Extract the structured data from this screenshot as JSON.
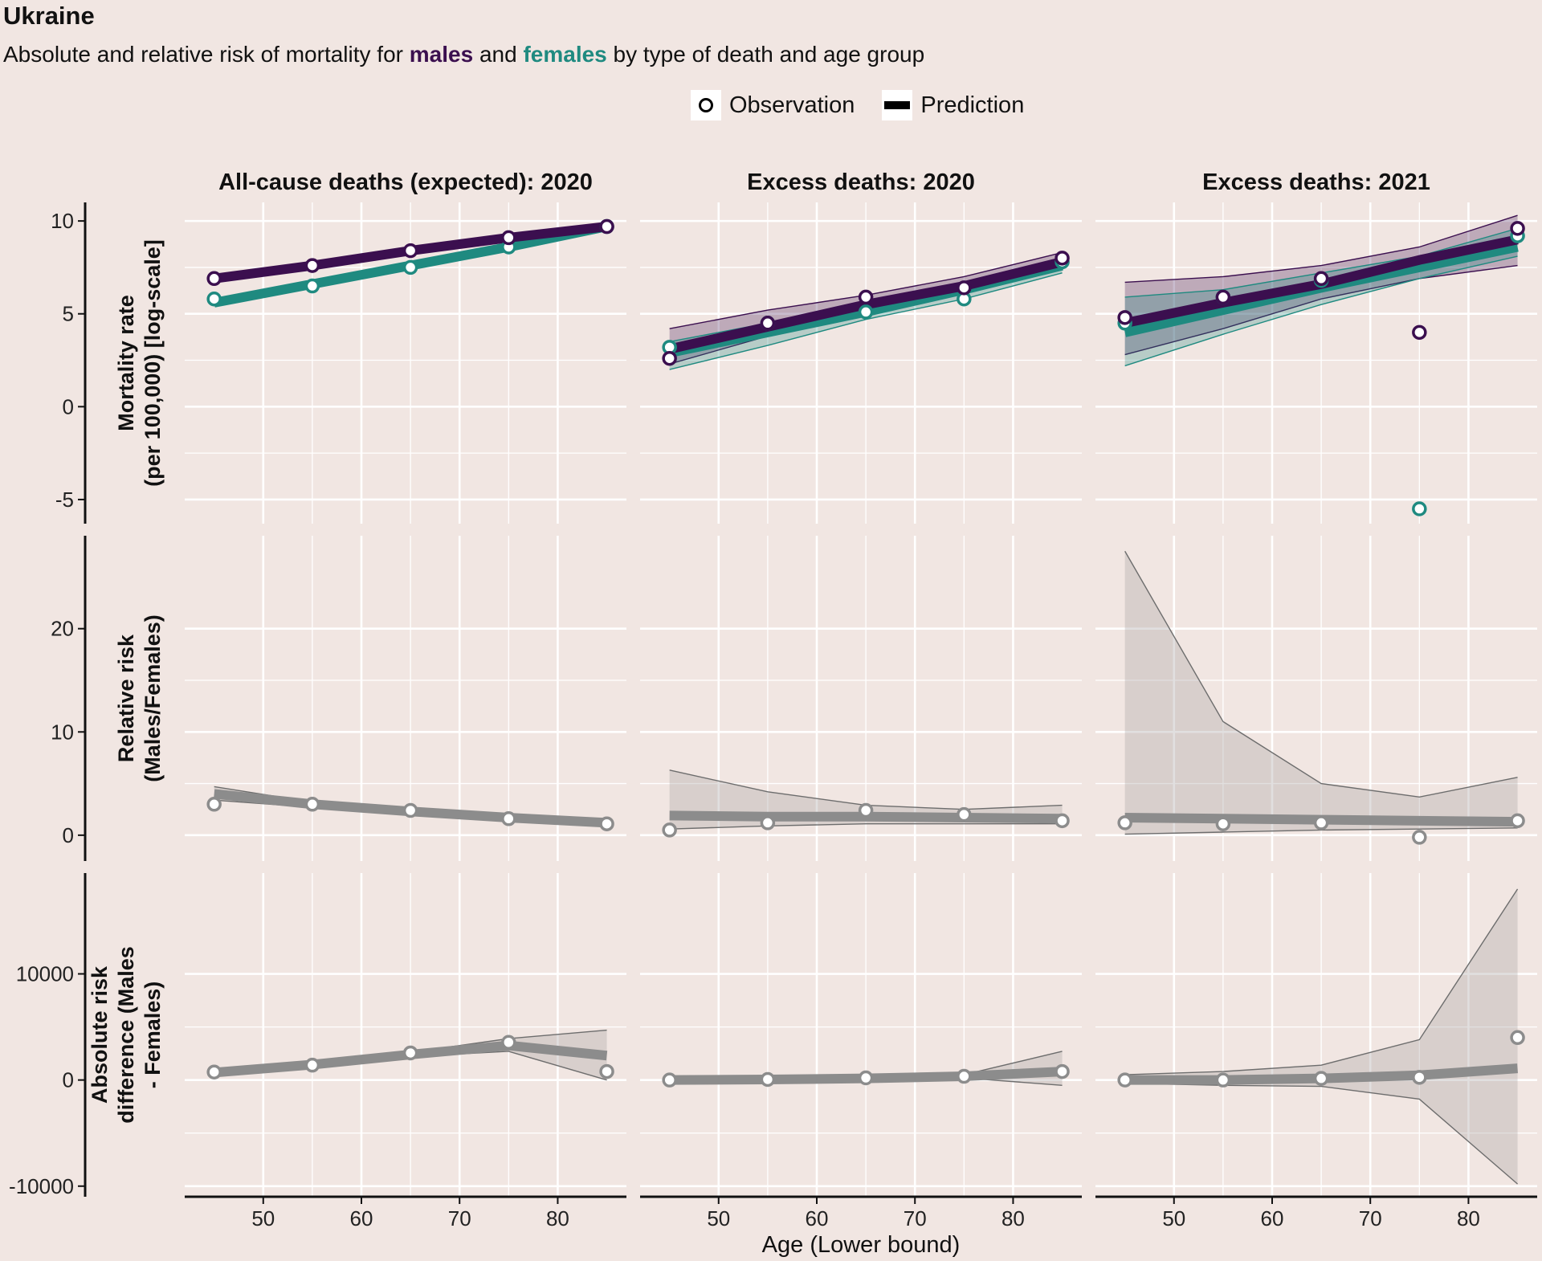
{
  "title": "Ukraine",
  "subtitle": {
    "before": "Absolute and relative risk of mortality for ",
    "males": "males",
    "middle": " and ",
    "females": "females",
    "after": " by type of death and age group"
  },
  "legend": {
    "observation": "Observation",
    "prediction": "Prediction"
  },
  "colors": {
    "background": "#f1e6e2",
    "males": "#3b0f4f",
    "females": "#1f8a80",
    "grey_line": "#8c8c8c",
    "ribbon_grey": "#d3cccb"
  },
  "chart_data": {
    "type": "line",
    "facet_columns": [
      "All-cause deaths (expected): 2020",
      "Excess deaths: 2020",
      "Excess deaths: 2021"
    ],
    "xlabel": "Age (Lower bound)",
    "x": [
      45,
      55,
      65,
      75,
      85
    ],
    "x_ticks": [
      50,
      60,
      70,
      80
    ],
    "x_range": [
      42,
      87
    ],
    "grid": true,
    "legend_position": "top",
    "rows": [
      {
        "ylabel": "Mortality rate (per 100,000) [log-scale]",
        "y_range": [
          -6.3,
          11
        ],
        "y_ticks": [
          -5,
          0,
          5,
          10
        ],
        "y_tick_labels": [
          "-5",
          "0",
          "5",
          "10"
        ],
        "panels": [
          {
            "series": [
              {
                "group": "males",
                "obs": [
                  6.9,
                  7.6,
                  8.4,
                  9.1,
                  9.7
                ],
                "pred": [
                  6.9,
                  7.6,
                  8.4,
                  9.1,
                  9.7
                ]
              },
              {
                "group": "females",
                "obs": [
                  5.8,
                  6.5,
                  7.5,
                  8.6,
                  9.7
                ],
                "pred": [
                  5.6,
                  6.6,
                  7.6,
                  8.6,
                  9.7
                ]
              }
            ]
          },
          {
            "series": [
              {
                "group": "males",
                "obs": [
                  2.6,
                  4.5,
                  5.9,
                  6.4,
                  8.0
                ],
                "pred": [
                  3.1,
                  4.3,
                  5.5,
                  6.5,
                  7.8
                ],
                "lo": [
                  2.3,
                  3.8,
                  5.1,
                  6.2,
                  7.4
                ],
                "hi": [
                  4.2,
                  5.2,
                  6.0,
                  7.0,
                  8.3
                ]
              },
              {
                "group": "females",
                "obs": [
                  3.2,
                  4.5,
                  5.1,
                  5.8,
                  7.8
                ],
                "pred": [
                  2.9,
                  4.0,
                  5.1,
                  6.3,
                  7.6
                ],
                "lo": [
                  2.0,
                  3.3,
                  4.7,
                  5.8,
                  7.2
                ],
                "hi": [
                  3.5,
                  4.5,
                  5.6,
                  6.6,
                  8.0
                ]
              }
            ]
          },
          {
            "series": [
              {
                "group": "males",
                "obs": [
                  4.8,
                  5.9,
                  6.9,
                  4.0,
                  9.6
                ],
                "pred": [
                  4.5,
                  5.6,
                  6.6,
                  7.9,
                  9.0
                ],
                "lo": [
                  2.8,
                  4.2,
                  5.8,
                  6.9,
                  7.6
                ],
                "hi": [
                  6.7,
                  7.0,
                  7.6,
                  8.6,
                  10.3
                ]
              },
              {
                "group": "females",
                "obs": [
                  4.5,
                  5.9,
                  6.8,
                  -5.5,
                  9.2
                ],
                "pred": [
                  4.0,
                  5.2,
                  6.4,
                  7.5,
                  8.6
                ],
                "lo": [
                  2.2,
                  3.9,
                  5.5,
                  6.9,
                  8.1
                ],
                "hi": [
                  5.9,
                  6.3,
                  7.2,
                  8.1,
                  9.6
                ]
              }
            ]
          }
        ]
      },
      {
        "ylabel": "Relative risk (Males/Females)",
        "y_range": [
          -2.5,
          29
        ],
        "y_ticks": [
          0,
          10,
          20
        ],
        "y_tick_labels": [
          "0",
          "10",
          "20"
        ],
        "panels": [
          {
            "series": [
              {
                "group": "ratio",
                "obs": [
                  3.0,
                  3.0,
                  2.4,
                  1.6,
                  1.1
                ],
                "pred": [
                  4.0,
                  3.0,
                  2.3,
                  1.7,
                  1.2
                ],
                "lo": [
                  3.4,
                  2.7,
                  2.1,
                  1.5,
                  1.0
                ],
                "hi": [
                  4.7,
                  3.2,
                  2.5,
                  1.9,
                  1.3
                ]
              }
            ]
          },
          {
            "series": [
              {
                "group": "ratio",
                "obs": [
                  0.5,
                  1.2,
                  2.4,
                  2.0,
                  1.4
                ],
                "pred": [
                  1.9,
                  1.8,
                  1.8,
                  1.7,
                  1.6
                ],
                "lo": [
                  0.6,
                  0.9,
                  1.1,
                  1.1,
                  1.1
                ],
                "hi": [
                  6.3,
                  4.2,
                  2.9,
                  2.5,
                  2.9
                ]
              }
            ]
          },
          {
            "series": [
              {
                "group": "ratio",
                "obs": [
                  1.2,
                  1.1,
                  1.2,
                  -0.2,
                  1.4
                ],
                "pred": [
                  1.7,
                  1.6,
                  1.5,
                  1.4,
                  1.3
                ],
                "lo": [
                  0.1,
                  0.3,
                  0.5,
                  0.6,
                  0.7
                ],
                "hi": [
                  27.5,
                  11.0,
                  5.0,
                  3.7,
                  5.6
                ]
              }
            ]
          }
        ]
      },
      {
        "ylabel": "Absolute risk difference (Males - Females)",
        "y_range": [
          -11000,
          19500
        ],
        "y_ticks": [
          -10000,
          0,
          10000
        ],
        "y_tick_labels": [
          "-10000",
          "0",
          "10000"
        ],
        "panels": [
          {
            "series": [
              {
                "group": "difference",
                "obs": [
                  750,
                  1400,
                  2550,
                  3550,
                  800
                ],
                "pred": [
                  700,
                  1450,
                  2400,
                  3250,
                  2300
                ],
                "lo": [
                  500,
                  1300,
                  2200,
                  2700,
                  0
                ],
                "hi": [
                  900,
                  1600,
                  2600,
                  3900,
                  4700
                ]
              }
            ]
          },
          {
            "series": [
              {
                "group": "difference",
                "obs": [
                  0,
                  50,
                  200,
                  350,
                  800
                ],
                "pred": [
                  0,
                  50,
                  150,
                  350,
                  800
                ],
                "lo": [
                  -50,
                  0,
                  50,
                  200,
                  -500
                ],
                "hi": [
                  50,
                  100,
                  250,
                  500,
                  2700
                ]
              }
            ]
          },
          {
            "series": [
              {
                "group": "difference",
                "obs": [
                  0,
                  0,
                  150,
                  250,
                  4000
                ],
                "pred": [
                  0,
                  0,
                  150,
                  450,
                  1100
                ],
                "lo": [
                  -300,
                  -500,
                  -600,
                  -1800,
                  -9800
                ],
                "hi": [
                  500,
                  800,
                  1400,
                  3800,
                  18000
                ]
              }
            ]
          }
        ]
      }
    ]
  }
}
